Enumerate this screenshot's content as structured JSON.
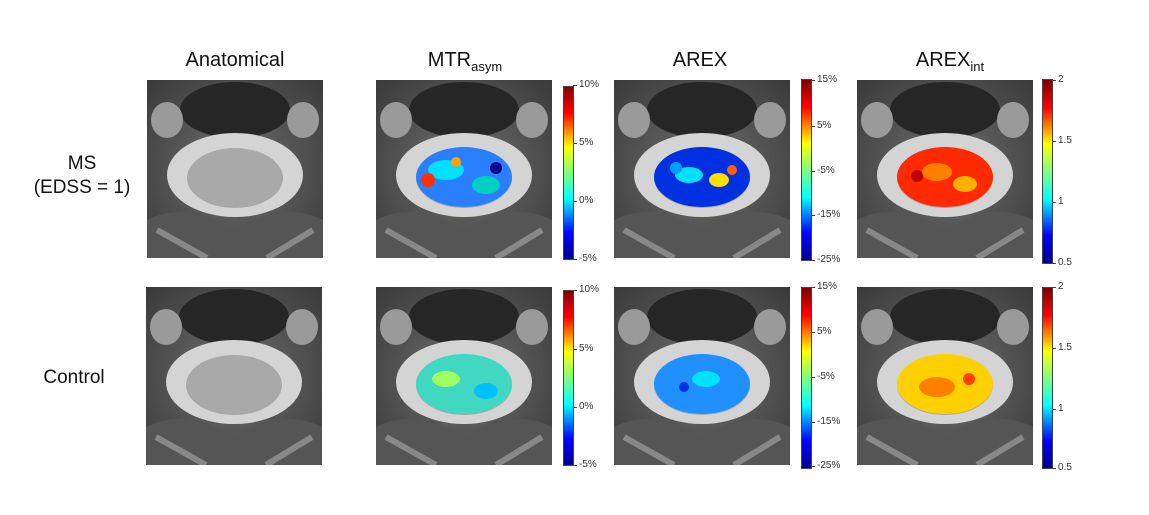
{
  "columns": {
    "anatomical": "Anatomical",
    "mtr_main": "MTR",
    "mtr_sub": "asym",
    "arex": "AREX",
    "arexint_main": "AREX",
    "arexint_sub": "int"
  },
  "rows": {
    "ms_line1": "MS",
    "ms_line2": "(EDSS = 1)",
    "control": "Control"
  },
  "colorbars": {
    "mtr": [
      "10%",
      "5%",
      "0%",
      "-5%"
    ],
    "arex": [
      "15%",
      "5%",
      "-5%",
      "-15%",
      "-25%"
    ],
    "arexint": [
      "2",
      "1.5",
      "1",
      "0.5"
    ]
  }
}
